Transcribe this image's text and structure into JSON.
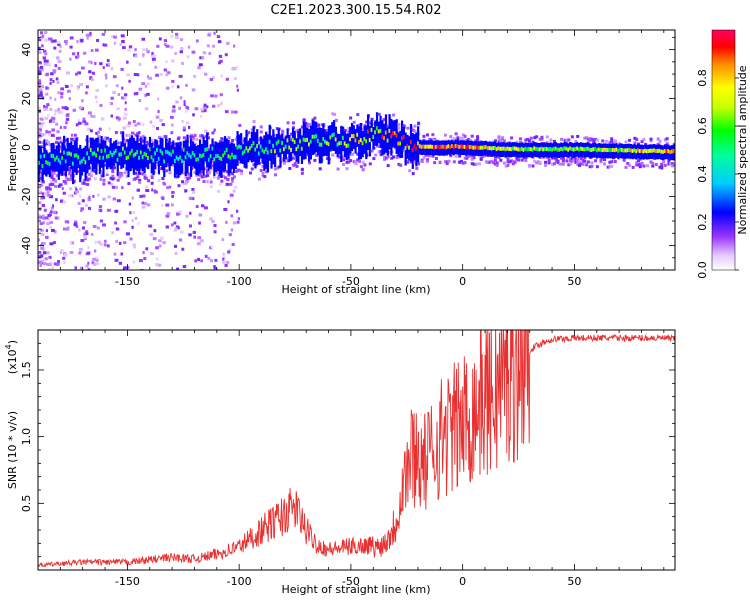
{
  "title": "C2E1.2023.300.15.54.R02",
  "chart_data": [
    {
      "type": "heatmap",
      "name": "spectrogram",
      "xlabel": "Height of straight line (km)",
      "ylabel": "Frequency (Hz)",
      "xlim": [
        -190,
        95
      ],
      "ylim": [
        -50,
        48
      ],
      "xticks": [
        -150,
        -100,
        -50,
        0,
        50
      ],
      "xtick_labels": [
        "-150",
        "-100",
        "-50",
        "0",
        "50"
      ],
      "yticks": [
        -40,
        -20,
        0,
        20,
        40
      ],
      "ytick_labels": [
        "-40",
        "-20",
        "0",
        "20",
        "40"
      ],
      "colorbar": {
        "label": "Normalized spectral amplitude",
        "range": [
          0,
          1
        ],
        "ticks": [
          0.0,
          0.2,
          0.4,
          0.6,
          0.8
        ],
        "tick_labels": [
          "0.0",
          "0.2",
          "0.4",
          "0.6",
          "0.8"
        ]
      },
      "ridge": {
        "height_km": [
          -190,
          -170,
          -150,
          -130,
          -110,
          -100,
          -90,
          -80,
          -70,
          -60,
          -50,
          -40,
          -35,
          -30,
          -25,
          -20,
          -10,
          0,
          20,
          50,
          95
        ],
        "frequency_hz": [
          -6,
          -4,
          -3,
          -4,
          -3,
          -2,
          0,
          0,
          2,
          3,
          2,
          5,
          5,
          4,
          0,
          0,
          0,
          0,
          -1,
          -1,
          -2
        ],
        "amplitude": [
          0.5,
          0.55,
          0.55,
          0.5,
          0.55,
          0.55,
          0.55,
          0.6,
          0.6,
          0.6,
          0.75,
          0.85,
          0.8,
          0.85,
          0.9,
          0.95,
          0.95,
          0.95,
          0.7,
          0.65,
          0.9
        ]
      }
    },
    {
      "type": "line",
      "name": "snr",
      "xlabel": "Height of straight line (km)",
      "ylabel": "SNR (10 * v/v)",
      "yscale_label": "(x10",
      "yscale_exp": "4",
      "xlim": [
        -190,
        95
      ],
      "ylim": [
        0,
        18000
      ],
      "xticks": [
        -150,
        -100,
        -50,
        0,
        50
      ],
      "xtick_labels": [
        "-150",
        "-100",
        "-50",
        "0",
        "50"
      ],
      "yticks": [
        5000,
        10000,
        15000
      ],
      "ytick_labels": [
        "0.5",
        "1.0",
        "1.5"
      ],
      "color": "#e83030",
      "x": [
        -190,
        -170,
        -150,
        -130,
        -120,
        -110,
        -100,
        -95,
        -90,
        -85,
        -80,
        -75,
        -70,
        -65,
        -60,
        -50,
        -40,
        -35,
        -30,
        -27,
        -25,
        -22,
        -20,
        -17,
        -15,
        -10,
        -5,
        0,
        5,
        10,
        15,
        20,
        25,
        30,
        35,
        40,
        50,
        60,
        70,
        80,
        90,
        95
      ],
      "y": [
        300,
        500,
        500,
        800,
        700,
        1000,
        1500,
        2000,
        2500,
        3000,
        3500,
        4000,
        2500,
        1600,
        1300,
        1500,
        1600,
        2000,
        3500,
        6500,
        7500,
        9000,
        8500,
        8000,
        8500,
        10000,
        10500,
        11000,
        12000,
        13000,
        13500,
        14500,
        15500,
        16500,
        17000,
        17300,
        17400,
        17400,
        17400,
        17400,
        17400,
        17300
      ]
    }
  ]
}
